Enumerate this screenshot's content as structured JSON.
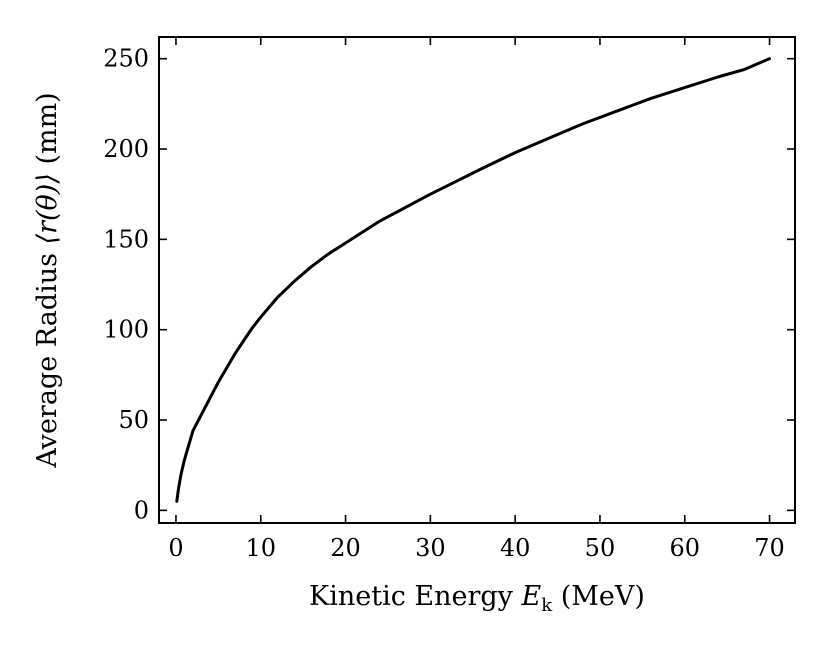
{
  "chart_data": {
    "type": "line",
    "title": "",
    "xlabel_parts": {
      "prefix": "Kinetic Energy ",
      "symbol": "E",
      "subscript": "k",
      "unit": " (MeV)"
    },
    "ylabel_parts": {
      "prefix": "Average Radius ",
      "expr": "⟨r(θ)⟩",
      "unit": " (mm)"
    },
    "xlim": [
      -2,
      73
    ],
    "ylim": [
      -7,
      262
    ],
    "xticks": [
      0,
      10,
      20,
      30,
      40,
      50,
      60,
      70
    ],
    "yticks": [
      0,
      50,
      100,
      150,
      200,
      250
    ],
    "grid": false,
    "series": [
      {
        "color": "#000000",
        "x": [
          0.1,
          0.3,
          0.6,
          1.0,
          1.5,
          2.0,
          3.0,
          4.0,
          5.0,
          6.0,
          7.0,
          8.0,
          9.0,
          10.0,
          12.0,
          14.0,
          16.0,
          18.0,
          20.0,
          22.0,
          24.0,
          26.0,
          28.0,
          30.0,
          33.0,
          36.0,
          40.0,
          44.0,
          48.0,
          52.0,
          56.0,
          60.0,
          64.0,
          67.0,
          70.0
        ],
        "y": [
          5,
          12,
          20,
          28,
          36,
          44,
          53,
          62,
          71,
          79,
          87,
          94,
          101,
          107,
          118,
          127,
          135,
          142,
          148,
          154,
          160,
          165,
          170,
          175,
          182,
          189,
          198,
          206,
          214,
          221,
          228,
          234,
          240,
          244,
          250
        ]
      }
    ]
  }
}
